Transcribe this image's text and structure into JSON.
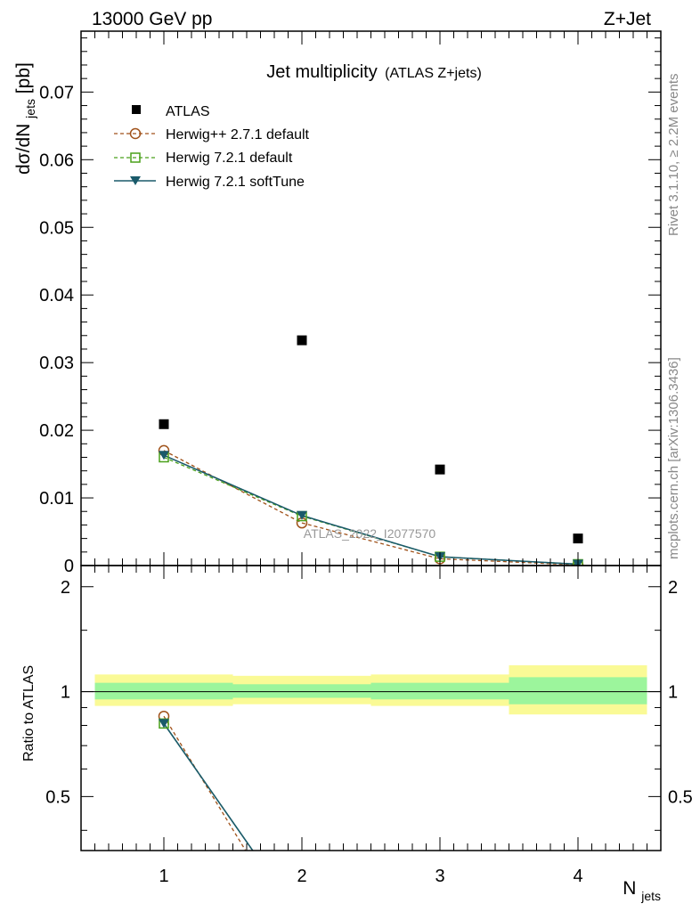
{
  "header": {
    "left": "13000 GeV pp",
    "right": "Z+Jet"
  },
  "side": {
    "rivet": "Rivet 3.1.10, ≥ 2.2M events",
    "mcplots": "mcplots.cern.ch [arXiv:1306.3436]"
  },
  "watermark": "ATLAS_2022_I2077570",
  "colors": {
    "data": "#000000",
    "herwigpp": "#a0521a",
    "herwig_default": "#4aa01a",
    "herwig_softtune": "#1a5a6a",
    "band_inner": "#9cf59c",
    "band_outer": "#fafa96"
  },
  "chart_data": [
    {
      "type": "scatter",
      "title": "Jet multiplicity",
      "title_suffix": "(ATLAS Z+jets)",
      "ylabel_main": "dσ/dN",
      "ylabel_sub": "jets",
      "ylabel_unit": " [pb]",
      "xlabel_main": "N",
      "xlabel_sub": "jets",
      "xlim": [
        0.4,
        4.6
      ],
      "ylim": [
        0,
        0.079
      ],
      "yticks": [
        0,
        0.01,
        0.02,
        0.03,
        0.04,
        0.05,
        0.06,
        0.07
      ],
      "ytick_labels": [
        "0",
        "0.01",
        "0.02",
        "0.03",
        "0.04",
        "0.05",
        "0.06",
        "0.07"
      ],
      "legend_position": "top-left",
      "x": [
        1,
        2,
        3,
        4
      ],
      "series": [
        {
          "name": "ATLAS",
          "marker": "filled-square",
          "line": "none",
          "values": [
            0.0209,
            0.0333,
            0.0142,
            0.004
          ]
        },
        {
          "name": "Herwig++ 2.7.1 default",
          "marker": "open-circle",
          "line": "dashed",
          "values": [
            0.017,
            0.0063,
            0.001,
            0.0001
          ]
        },
        {
          "name": "Herwig 7.2.1 default",
          "marker": "open-square",
          "line": "dashed",
          "values": [
            0.016,
            0.0073,
            0.0013,
            0.0002
          ]
        },
        {
          "name": "Herwig 7.2.1 softTune",
          "marker": "filled-triangle-down",
          "line": "solid",
          "values": [
            0.0163,
            0.0074,
            0.0013,
            0.0002
          ]
        }
      ]
    },
    {
      "type": "line",
      "ylabel": "Ratio to ATLAS",
      "ylim": [
        0.35,
        2.3
      ],
      "scale": "log",
      "yticks": [
        0.5,
        1,
        2
      ],
      "ytick_labels": [
        "0.5",
        "1",
        "2"
      ],
      "xticks": [
        1,
        2,
        3,
        4
      ],
      "xtick_labels": [
        "1",
        "2",
        "3",
        "4"
      ],
      "reference_line": 1,
      "bins": [
        [
          0.5,
          1.5
        ],
        [
          1.5,
          2.5
        ],
        [
          2.5,
          3.5
        ],
        [
          3.5,
          4.5
        ]
      ],
      "band_inner": [
        [
          0.95,
          1.06
        ],
        [
          0.96,
          1.05
        ],
        [
          0.95,
          1.06
        ],
        [
          0.92,
          1.1
        ]
      ],
      "band_outer": [
        [
          0.91,
          1.12
        ],
        [
          0.92,
          1.11
        ],
        [
          0.91,
          1.12
        ],
        [
          0.86,
          1.19
        ]
      ],
      "series": [
        {
          "name": "Herwig++ 2.7.1 default",
          "x": [
            1,
            2
          ],
          "values": [
            0.85,
            0.19
          ]
        },
        {
          "name": "Herwig 7.2.1 default",
          "x": [
            1,
            2
          ],
          "values": [
            0.81,
            0.22
          ]
        },
        {
          "name": "Herwig 7.2.1 softTune",
          "x": [
            1,
            2
          ],
          "values": [
            0.81,
            0.22
          ]
        }
      ]
    }
  ]
}
